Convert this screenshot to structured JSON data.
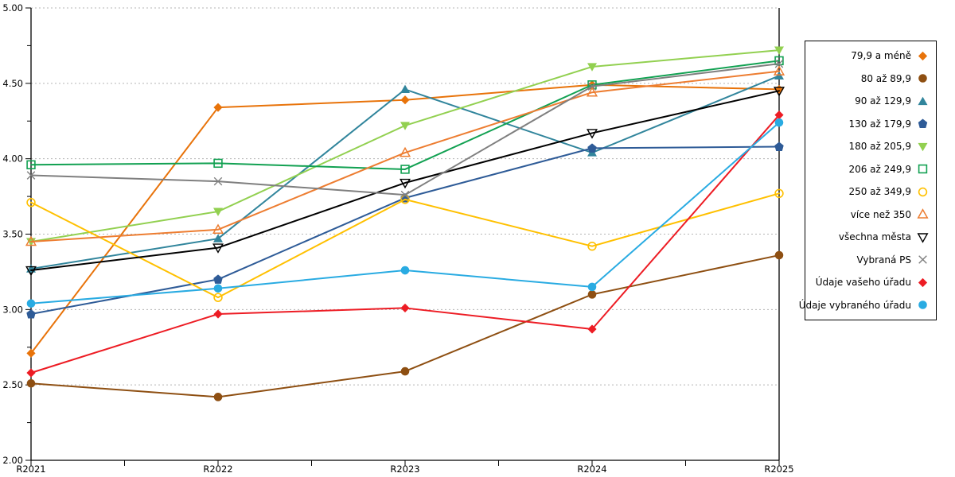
{
  "chart_data": {
    "type": "line",
    "title": "",
    "xlabel": "",
    "ylabel": "",
    "categories": [
      "R2021",
      "R2022",
      "R2023",
      "R2024",
      "R2025"
    ],
    "ylim": [
      2.0,
      5.0
    ],
    "y_major_step": 0.5,
    "y_minor_step": 0.25,
    "y_tick_labels": [
      "5.00",
      "4.50",
      "4.00",
      "3.50",
      "3.00",
      "2.50",
      "2.00"
    ],
    "grid": "horizontal dashed gridlines at each 0.50 step",
    "legend_position": "right boxed",
    "series": [
      {
        "name": "79,9 a méně",
        "color": "#E8730A",
        "marker": "diamond",
        "values": [
          2.71,
          4.34,
          4.39,
          4.49,
          4.46
        ]
      },
      {
        "name": "80 až 89,9",
        "color": "#8E4F12",
        "marker": "circle",
        "values": [
          2.51,
          2.42,
          2.59,
          3.1,
          3.36
        ]
      },
      {
        "name": "90 až 129,9",
        "color": "#31859C",
        "marker": "triangle-up",
        "values": [
          3.27,
          3.47,
          4.46,
          4.04,
          4.55
        ]
      },
      {
        "name": "130 až 179,9",
        "color": "#2E5B97",
        "marker": "pentagon",
        "values": [
          2.97,
          3.2,
          3.74,
          4.07,
          4.08
        ]
      },
      {
        "name": "180 až 205,9",
        "color": "#92D050",
        "marker": "triangle-down",
        "values": [
          3.45,
          3.65,
          4.22,
          4.61,
          4.72
        ]
      },
      {
        "name": "206 až 249,9",
        "color": "#12A152",
        "marker": "square-open",
        "values": [
          3.96,
          3.97,
          3.93,
          4.49,
          4.65
        ]
      },
      {
        "name": "250 až 349,9",
        "color": "#FFC000",
        "marker": "circle-open",
        "values": [
          3.71,
          3.08,
          3.73,
          3.42,
          3.77
        ]
      },
      {
        "name": "více než 350",
        "color": "#ED7D31",
        "marker": "triangle-open",
        "values": [
          3.45,
          3.53,
          4.04,
          4.44,
          4.58
        ]
      },
      {
        "name": "všechna města",
        "color": "#000000",
        "marker": "triangle-down-open",
        "values": [
          3.26,
          3.41,
          3.84,
          4.17,
          4.45
        ]
      },
      {
        "name": "Vybraná PS",
        "color": "#7F7F7F",
        "marker": "x-cross",
        "values": [
          3.89,
          3.85,
          3.76,
          4.48,
          4.63
        ]
      },
      {
        "name": "Údaje vašeho úřadu",
        "color": "#ED1C24",
        "marker": "diamond",
        "values": [
          2.58,
          2.97,
          3.01,
          2.87,
          4.29
        ]
      },
      {
        "name": "Údaje vybraného úřadu",
        "color": "#29ABE2",
        "marker": "circle",
        "values": [
          3.04,
          3.14,
          3.26,
          3.15,
          4.24
        ]
      }
    ],
    "colors": {
      "gridline": "#B5B5B5",
      "axis": "#000000",
      "background": "#FFFFFF"
    }
  }
}
